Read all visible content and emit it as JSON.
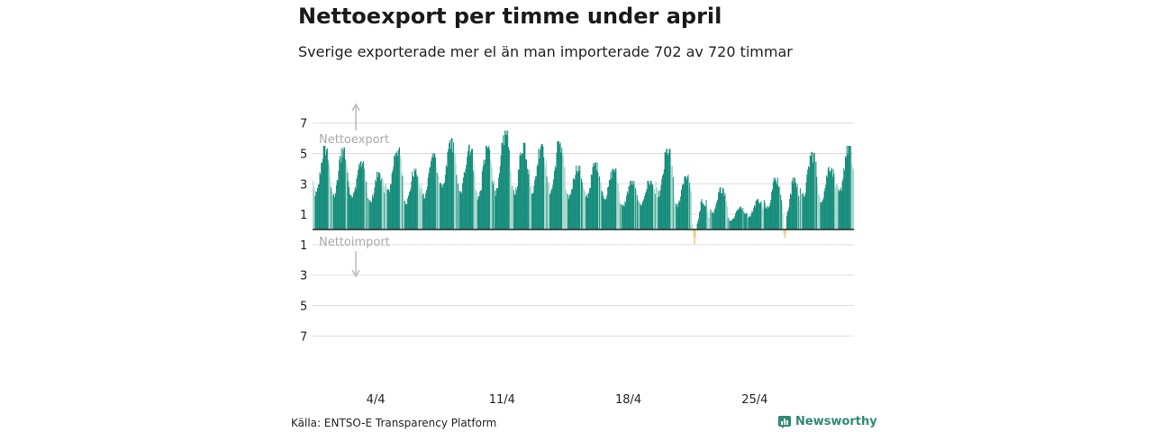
{
  "chart_data": {
    "type": "bar",
    "title": "Nettoexport per timme under april",
    "subtitle": "Sverige exporterade mer el än man importerade 702 av 720 timmar",
    "xlabel": "",
    "ylabel": "",
    "ylim": [
      -7.2,
      7.2
    ],
    "y_ticks": [
      {
        "value": 7,
        "label": "7"
      },
      {
        "value": 5,
        "label": "5"
      },
      {
        "value": 3,
        "label": "3"
      },
      {
        "value": 1,
        "label": "1"
      },
      {
        "value": -1,
        "label": "1"
      },
      {
        "value": -3,
        "label": "3"
      },
      {
        "value": -5,
        "label": "5"
      },
      {
        "value": -7,
        "label": "7"
      }
    ],
    "x_ticks": [
      {
        "day": 4,
        "label": "4/4"
      },
      {
        "day": 11,
        "label": "11/4"
      },
      {
        "day": 18,
        "label": "18/4"
      },
      {
        "day": 25,
        "label": "25/4"
      }
    ],
    "annotations": {
      "export_label": "Nettoexport",
      "import_label": "Nettoimport"
    },
    "hours": 720,
    "days": 30,
    "daily": [
      {
        "day": 1,
        "min": 0.6,
        "max": 5.5
      },
      {
        "day": 2,
        "min": 0.5,
        "max": 5.4
      },
      {
        "day": 3,
        "min": 0.8,
        "max": 4.5
      },
      {
        "day": 4,
        "min": 0.7,
        "max": 3.8
      },
      {
        "day": 5,
        "min": 0.9,
        "max": 5.4
      },
      {
        "day": 6,
        "min": 0.6,
        "max": 4.0
      },
      {
        "day": 7,
        "min": 0.7,
        "max": 5.0
      },
      {
        "day": 8,
        "min": 0.8,
        "max": 6.0
      },
      {
        "day": 9,
        "min": 0.6,
        "max": 5.6
      },
      {
        "day": 10,
        "min": 0.3,
        "max": 5.5
      },
      {
        "day": 11,
        "min": 0.2,
        "max": 6.5
      },
      {
        "day": 12,
        "min": 0.6,
        "max": 5.7
      },
      {
        "day": 13,
        "min": 0.8,
        "max": 5.8
      },
      {
        "day": 14,
        "min": 0.7,
        "max": 5.8
      },
      {
        "day": 15,
        "min": 1.0,
        "max": 4.2
      },
      {
        "day": 16,
        "min": 1.0,
        "max": 4.4
      },
      {
        "day": 17,
        "min": 1.0,
        "max": 4.0
      },
      {
        "day": 18,
        "min": 0.6,
        "max": 3.2
      },
      {
        "day": 19,
        "min": 0.8,
        "max": 3.2
      },
      {
        "day": 20,
        "min": 0.7,
        "max": 5.3
      },
      {
        "day": 21,
        "min": 0.4,
        "max": 3.6
      },
      {
        "day": 22,
        "min": -1.2,
        "max": 2.0
      },
      {
        "day": 23,
        "min": 0.1,
        "max": 2.8
      },
      {
        "day": 24,
        "min": 0.1,
        "max": 1.5
      },
      {
        "day": 25,
        "min": 0.2,
        "max": 2.0
      },
      {
        "day": 26,
        "min": 0.4,
        "max": 3.4
      },
      {
        "day": 27,
        "min": -0.7,
        "max": 3.4
      },
      {
        "day": 28,
        "min": 0.6,
        "max": 5.1
      },
      {
        "day": 29,
        "min": 0.7,
        "max": 4.2
      },
      {
        "day": 30,
        "min": 0.7,
        "max": 5.5
      }
    ],
    "colors": {
      "export_dark": "#148c7a",
      "export_light": "#a9d6cc",
      "import": "#f5c98c",
      "zero_line": "#222222",
      "grid": "#dddddd",
      "arrow": "#bbbbbb",
      "annotation": "#aaaaaa"
    }
  },
  "footer": {
    "source": "Källa: ENTSO-E Transparency Platform",
    "brand": "Newsworthy"
  }
}
